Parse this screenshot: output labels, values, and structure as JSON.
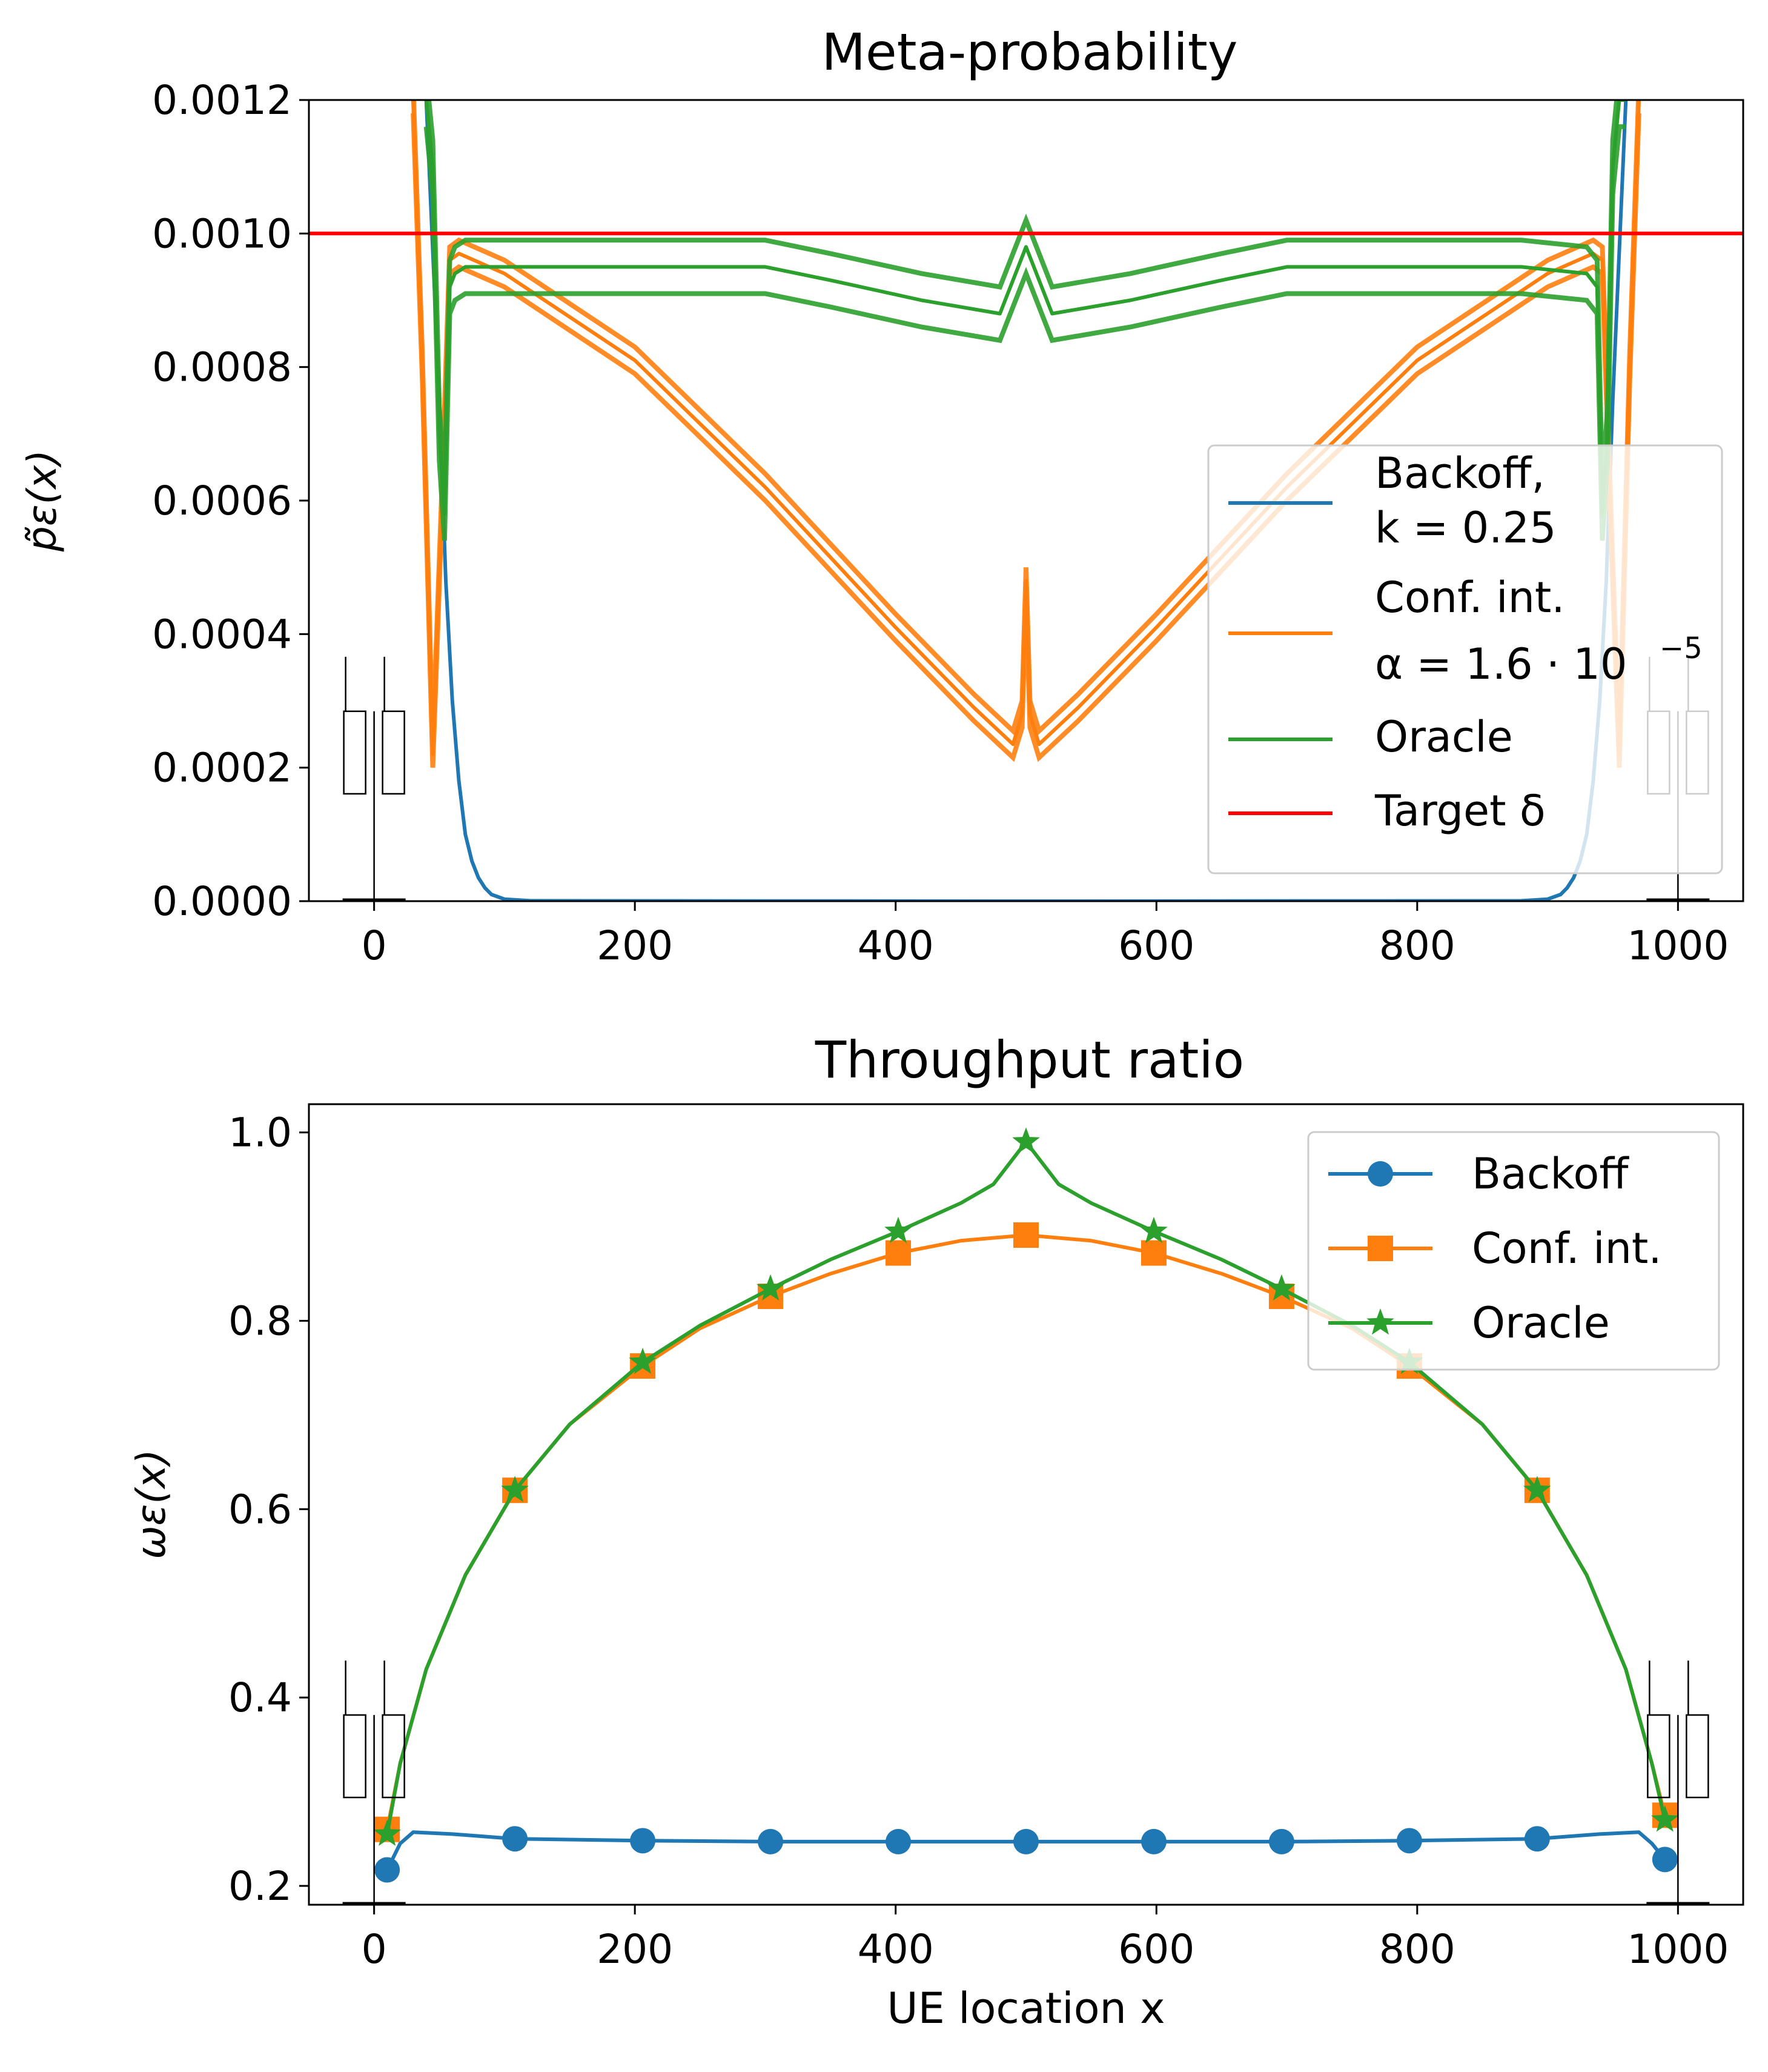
{
  "chart_data": [
    {
      "type": "line",
      "title": "Meta-probability",
      "ylabel": "p̃ε(x)",
      "xlabel": "",
      "xlim": [
        -50,
        1050
      ],
      "ylim": [
        0,
        0.0012
      ],
      "xticks": [
        0,
        200,
        400,
        600,
        800,
        1000
      ],
      "xtick_labels": [
        "0",
        "200",
        "400",
        "600",
        "800",
        "1000"
      ],
      "yticks": [
        0,
        0.0002,
        0.0004,
        0.0006,
        0.0008,
        0.001,
        0.0012
      ],
      "ytick_labels": [
        "0.0000",
        "0.0002",
        "0.0004",
        "0.0006",
        "0.0008",
        "0.0010",
        "0.0012"
      ],
      "legend_position": "right",
      "series": [
        {
          "name": "Backoff, k = 0.25",
          "legend_lines": [
            "Backoff,",
            "k = 0.25"
          ],
          "color": "#1f77b4",
          "x": [
            0,
            40,
            50,
            55,
            60,
            65,
            70,
            75,
            80,
            85,
            90,
            100,
            120,
            500,
            880,
            900,
            910,
            915,
            920,
            925,
            930,
            935,
            940,
            945,
            950,
            960,
            1000
          ],
          "y": [
            0.0013,
            0.0012,
            0.00075,
            0.00048,
            0.0003,
            0.00018,
            0.0001,
            6e-05,
            3.5e-05,
            2e-05,
            1e-05,
            3e-06,
            5e-07,
            0.0,
            5e-07,
            3e-06,
            1e-05,
            2e-05,
            3.5e-05,
            6e-05,
            0.0001,
            0.00018,
            0.0003,
            0.00048,
            0.00075,
            0.0012,
            0.0013
          ]
        },
        {
          "name": "Conf. int. α = 1.6·10⁻⁵",
          "legend_lines": [
            "Conf. int.",
            "α = 1.6 · 10"
          ],
          "legend_exponent": "−5",
          "color": "#ff7f0e",
          "x": [
            30,
            37,
            45,
            52,
            58,
            65,
            100,
            200,
            300,
            400,
            460,
            490,
            497,
            500,
            503,
            510,
            540,
            600,
            700,
            800,
            900,
            935,
            942,
            948,
            955,
            963,
            970
          ],
          "y": [
            0.0012,
            0.0008,
            0.00022,
            0.0006,
            0.00096,
            0.00097,
            0.00094,
            0.00081,
            0.00062,
            0.00041,
            0.00029,
            0.000235,
            0.00028,
            0.00048,
            0.00028,
            0.000235,
            0.00029,
            0.00041,
            0.00062,
            0.00081,
            0.00094,
            0.00097,
            0.00096,
            0.0006,
            0.00022,
            0.0008,
            0.0012
          ],
          "oscillation_band": 2e-05
        },
        {
          "name": "Oracle",
          "legend_lines": [
            "Oracle"
          ],
          "color": "#2ca02c",
          "x": [
            40,
            45,
            50,
            54,
            58,
            62,
            70,
            120,
            200,
            300,
            350,
            420,
            480,
            500,
            520,
            580,
            650,
            700,
            800,
            880,
            930,
            938,
            942,
            946,
            950,
            955,
            960
          ],
          "y": [
            0.0012,
            0.0011,
            0.0007,
            0.00058,
            0.00092,
            0.00094,
            0.00095,
            0.00095,
            0.00095,
            0.00095,
            0.00093,
            0.0009,
            0.00088,
            0.00098,
            0.00088,
            0.0009,
            0.00093,
            0.00095,
            0.00095,
            0.00095,
            0.00094,
            0.00092,
            0.00058,
            0.0007,
            0.0011,
            0.0012,
            0.0012
          ],
          "oscillation_band": 4e-05
        },
        {
          "name": "Target δ",
          "legend_lines": [
            "Target δ"
          ],
          "color": "#ff0000",
          "x": [
            -50,
            1050
          ],
          "y": [
            0.001,
            0.001
          ]
        }
      ],
      "boxplots_near_x": [
        0,
        1000
      ]
    },
    {
      "type": "line",
      "title": "Throughput ratio",
      "ylabel": "ωε(x)",
      "xlabel": "UE location x",
      "xlim": [
        -50,
        1050
      ],
      "ylim": [
        0.18,
        1.03
      ],
      "xticks": [
        0,
        200,
        400,
        600,
        800,
        1000
      ],
      "xtick_labels": [
        "0",
        "200",
        "400",
        "600",
        "800",
        "1000"
      ],
      "yticks": [
        0.2,
        0.4,
        0.6,
        0.8,
        1.0
      ],
      "ytick_labels": [
        "0.2",
        "0.4",
        "0.6",
        "0.8",
        "1.0"
      ],
      "legend_position": "top-right",
      "series": [
        {
          "name": "Backoff",
          "marker": "circle",
          "color": "#1f77b4",
          "x": [
            10,
            20,
            30,
            60,
            108,
            206,
            304,
            402,
            500,
            598,
            696,
            794,
            892,
            940,
            970,
            980,
            990
          ],
          "y": [
            0.217,
            0.245,
            0.257,
            0.255,
            0.25,
            0.248,
            0.247,
            0.247,
            0.247,
            0.247,
            0.247,
            0.248,
            0.25,
            0.255,
            0.257,
            0.245,
            0.228
          ],
          "marker_x": [
            10,
            108,
            206,
            304,
            402,
            500,
            598,
            696,
            794,
            892,
            990
          ],
          "marker_y": [
            0.217,
            0.25,
            0.248,
            0.247,
            0.247,
            0.247,
            0.247,
            0.247,
            0.248,
            0.25,
            0.228
          ]
        },
        {
          "name": "Conf. int.",
          "marker": "square",
          "color": "#ff7f0e",
          "x": [
            10,
            20,
            40,
            70,
            108,
            150,
            206,
            250,
            304,
            350,
            402,
            450,
            500,
            550,
            598,
            650,
            696,
            750,
            794,
            850,
            892,
            930,
            960,
            980,
            990
          ],
          "y": [
            0.26,
            0.33,
            0.43,
            0.53,
            0.62,
            0.69,
            0.752,
            0.792,
            0.826,
            0.85,
            0.872,
            0.885,
            0.891,
            0.885,
            0.872,
            0.85,
            0.826,
            0.792,
            0.752,
            0.69,
            0.62,
            0.53,
            0.43,
            0.33,
            0.275
          ],
          "marker_x": [
            10,
            108,
            206,
            304,
            402,
            500,
            598,
            696,
            794,
            892,
            990
          ],
          "marker_y": [
            0.26,
            0.62,
            0.752,
            0.826,
            0.872,
            0.891,
            0.872,
            0.826,
            0.752,
            0.62,
            0.275
          ]
        },
        {
          "name": "Oracle",
          "marker": "star",
          "color": "#2ca02c",
          "x": [
            10,
            20,
            40,
            70,
            108,
            150,
            206,
            250,
            304,
            350,
            402,
            450,
            475,
            500,
            525,
            550,
            598,
            650,
            696,
            750,
            794,
            850,
            892,
            930,
            960,
            980,
            990
          ],
          "y": [
            0.255,
            0.33,
            0.43,
            0.53,
            0.62,
            0.69,
            0.756,
            0.795,
            0.834,
            0.865,
            0.895,
            0.925,
            0.945,
            0.99,
            0.945,
            0.925,
            0.895,
            0.865,
            0.834,
            0.795,
            0.756,
            0.69,
            0.62,
            0.53,
            0.43,
            0.33,
            0.27
          ],
          "marker_x": [
            10,
            108,
            206,
            304,
            402,
            500,
            598,
            696,
            794,
            892,
            990
          ],
          "marker_y": [
            0.255,
            0.62,
            0.756,
            0.834,
            0.895,
            0.99,
            0.895,
            0.834,
            0.756,
            0.62,
            0.27
          ]
        }
      ],
      "boxplots_near_x": [
        0,
        1000
      ]
    }
  ]
}
